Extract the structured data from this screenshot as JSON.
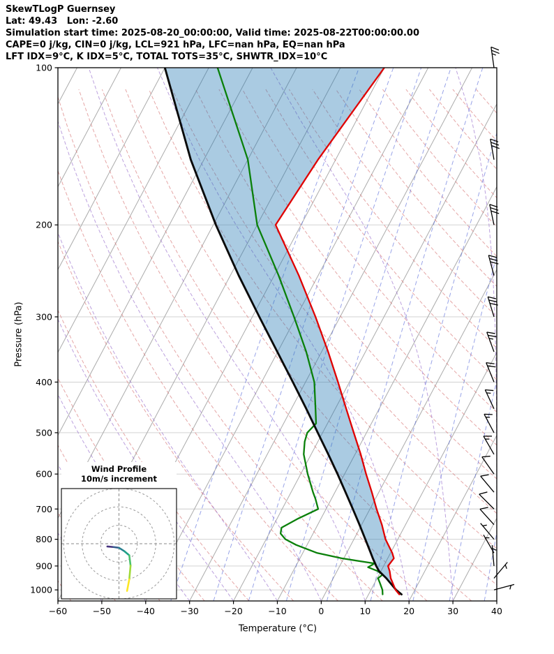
{
  "header": {
    "title": "SkewTLogP Guernsey",
    "location": "Lat: 49.43   Lon: -2.60",
    "times": "Simulation start time: 2025-08-20_00:00:00, Valid time: 2025-08-22T00:00:00.00",
    "indices1": "CAPE=0 j/kg, CIN=0 j/kg, LCL=921 hPa, LFC=nan hPa, EQ=nan hPa",
    "indices2": "LFT IDX=9°C, K IDX=5°C, TOTAL TOTS=35°C, SHWTR_IDX=10°C"
  },
  "axes": {
    "xlabel": "Temperature (°C)",
    "ylabel": "Pressure (hPa)"
  },
  "chart_data": {
    "type": "skewt-logp",
    "pressure_ticks": [
      100,
      200,
      300,
      400,
      500,
      600,
      700,
      800,
      900,
      1000
    ],
    "pressure_range": [
      100,
      1050
    ],
    "temp_ticks": [
      -60,
      -50,
      -40,
      -30,
      -20,
      -10,
      0,
      10,
      20,
      30,
      40
    ],
    "temp_range_at_surface": [
      -60,
      40
    ],
    "graticule": {
      "isotherm_color": "#ababab",
      "isobar_color": "#cccccc",
      "dry_adiabat_color": "#d46a6a",
      "moist_adiabat_color": "#9063c8",
      "mixing_ratio_color": "#5568d8",
      "mixing_ratio_values_gkg": [
        0.2,
        0.5,
        1,
        2,
        4,
        8,
        15,
        25,
        40
      ]
    },
    "series": [
      {
        "name": "temperature",
        "color": "#e00000",
        "width": 2.3,
        "points": [
          [
            1020,
            17.0
          ],
          [
            1000,
            15.6
          ],
          [
            950,
            13.1
          ],
          [
            921,
            12.0
          ],
          [
            900,
            11.0
          ],
          [
            870,
            11.4
          ],
          [
            850,
            10.4
          ],
          [
            800,
            7.2
          ],
          [
            750,
            4.6
          ],
          [
            700,
            1.5
          ],
          [
            650,
            -1.6
          ],
          [
            600,
            -5.1
          ],
          [
            550,
            -8.7
          ],
          [
            500,
            -12.9
          ],
          [
            450,
            -17.5
          ],
          [
            400,
            -22.6
          ],
          [
            350,
            -28.5
          ],
          [
            300,
            -35.6
          ],
          [
            250,
            -44.4
          ],
          [
            200,
            -55.8
          ],
          [
            150,
            -54.0
          ],
          [
            100,
            -50.0
          ]
        ]
      },
      {
        "name": "dewpoint",
        "color": "#0a800a",
        "width": 2.3,
        "points": [
          [
            1020,
            13.2
          ],
          [
            1000,
            12.6
          ],
          [
            970,
            11.2
          ],
          [
            950,
            10.2
          ],
          [
            935,
            10.8
          ],
          [
            920,
            9.2
          ],
          [
            905,
            6.6
          ],
          [
            890,
            7.6
          ],
          [
            870,
            -0.5
          ],
          [
            850,
            -6.7
          ],
          [
            820,
            -12.5
          ],
          [
            800,
            -15.6
          ],
          [
            780,
            -17.4
          ],
          [
            760,
            -17.9
          ],
          [
            730,
            -15.2
          ],
          [
            700,
            -11.8
          ],
          [
            670,
            -13.6
          ],
          [
            650,
            -15.0
          ],
          [
            600,
            -18.4
          ],
          [
            550,
            -21.7
          ],
          [
            520,
            -23.0
          ],
          [
            500,
            -23.5
          ],
          [
            480,
            -22.6
          ],
          [
            450,
            -24.5
          ],
          [
            400,
            -28.0
          ],
          [
            350,
            -33.5
          ],
          [
            300,
            -40.5
          ],
          [
            250,
            -49.0
          ],
          [
            200,
            -60.0
          ],
          [
            150,
            -70.0
          ],
          [
            100,
            -88.0
          ]
        ]
      },
      {
        "name": "parcel",
        "color": "#0a0a0a",
        "width": 2.9,
        "points": [
          [
            1020,
            17.5
          ],
          [
            1000,
            15.7
          ],
          [
            950,
            12.1
          ],
          [
            921,
            9.6
          ],
          [
            900,
            8.3
          ],
          [
            870,
            6.6
          ],
          [
            850,
            5.5
          ],
          [
            800,
            2.6
          ],
          [
            750,
            -0.5
          ],
          [
            700,
            -3.9
          ],
          [
            650,
            -7.6
          ],
          [
            600,
            -11.6
          ],
          [
            550,
            -16.1
          ],
          [
            500,
            -21.1
          ],
          [
            450,
            -26.6
          ],
          [
            400,
            -32.9
          ],
          [
            350,
            -40.1
          ],
          [
            300,
            -48.4
          ],
          [
            250,
            -58.1
          ],
          [
            200,
            -69.4
          ],
          [
            150,
            -83.0
          ],
          [
            100,
            -100.0
          ]
        ]
      }
    ],
    "cin_shading": {
      "between": [
        "parcel",
        "temperature"
      ],
      "color": "#1f77b4",
      "opacity": 0.38
    },
    "wind_barbs": {
      "units": "m/s",
      "full_barb": 10,
      "half_barb": 5,
      "flag": 50,
      "levels": [
        [
          1000,
          6,
          75
        ],
        [
          950,
          4,
          40
        ],
        [
          900,
          3,
          355
        ],
        [
          850,
          5,
          330
        ],
        [
          800,
          7,
          320
        ],
        [
          750,
          8,
          318
        ],
        [
          700,
          9,
          315
        ],
        [
          650,
          10,
          320
        ],
        [
          600,
          11,
          325
        ],
        [
          550,
          13,
          330
        ],
        [
          500,
          14,
          332
        ],
        [
          450,
          16,
          335
        ],
        [
          400,
          20,
          338
        ],
        [
          350,
          24,
          340
        ],
        [
          300,
          28,
          343
        ],
        [
          250,
          32,
          345
        ],
        [
          200,
          30,
          348
        ],
        [
          150,
          28,
          350
        ],
        [
          100,
          26,
          352
        ]
      ]
    },
    "hodograph": {
      "title": "Wind Profile",
      "subtitle": "10m/s increment",
      "ring_interval_ms": 10,
      "rings": [
        10,
        20,
        30
      ],
      "trace": [
        {
          "u": -6.3,
          "v": -1.5,
          "color": "#440154"
        },
        {
          "u": -3.0,
          "v": -1.8,
          "color": "#46327e"
        },
        {
          "u": 0.0,
          "v": -2.2,
          "color": "#365c8d"
        },
        {
          "u": 3.0,
          "v": -4.1,
          "color": "#277f8e"
        },
        {
          "u": 5.6,
          "v": -6.3,
          "color": "#1fa187"
        },
        {
          "u": 6.3,
          "v": -11.9,
          "color": "#4ac16d"
        },
        {
          "u": 5.6,
          "v": -19.3,
          "color": "#a0da39"
        },
        {
          "u": 4.4,
          "v": -25.6,
          "color": "#fde725"
        }
      ]
    }
  }
}
